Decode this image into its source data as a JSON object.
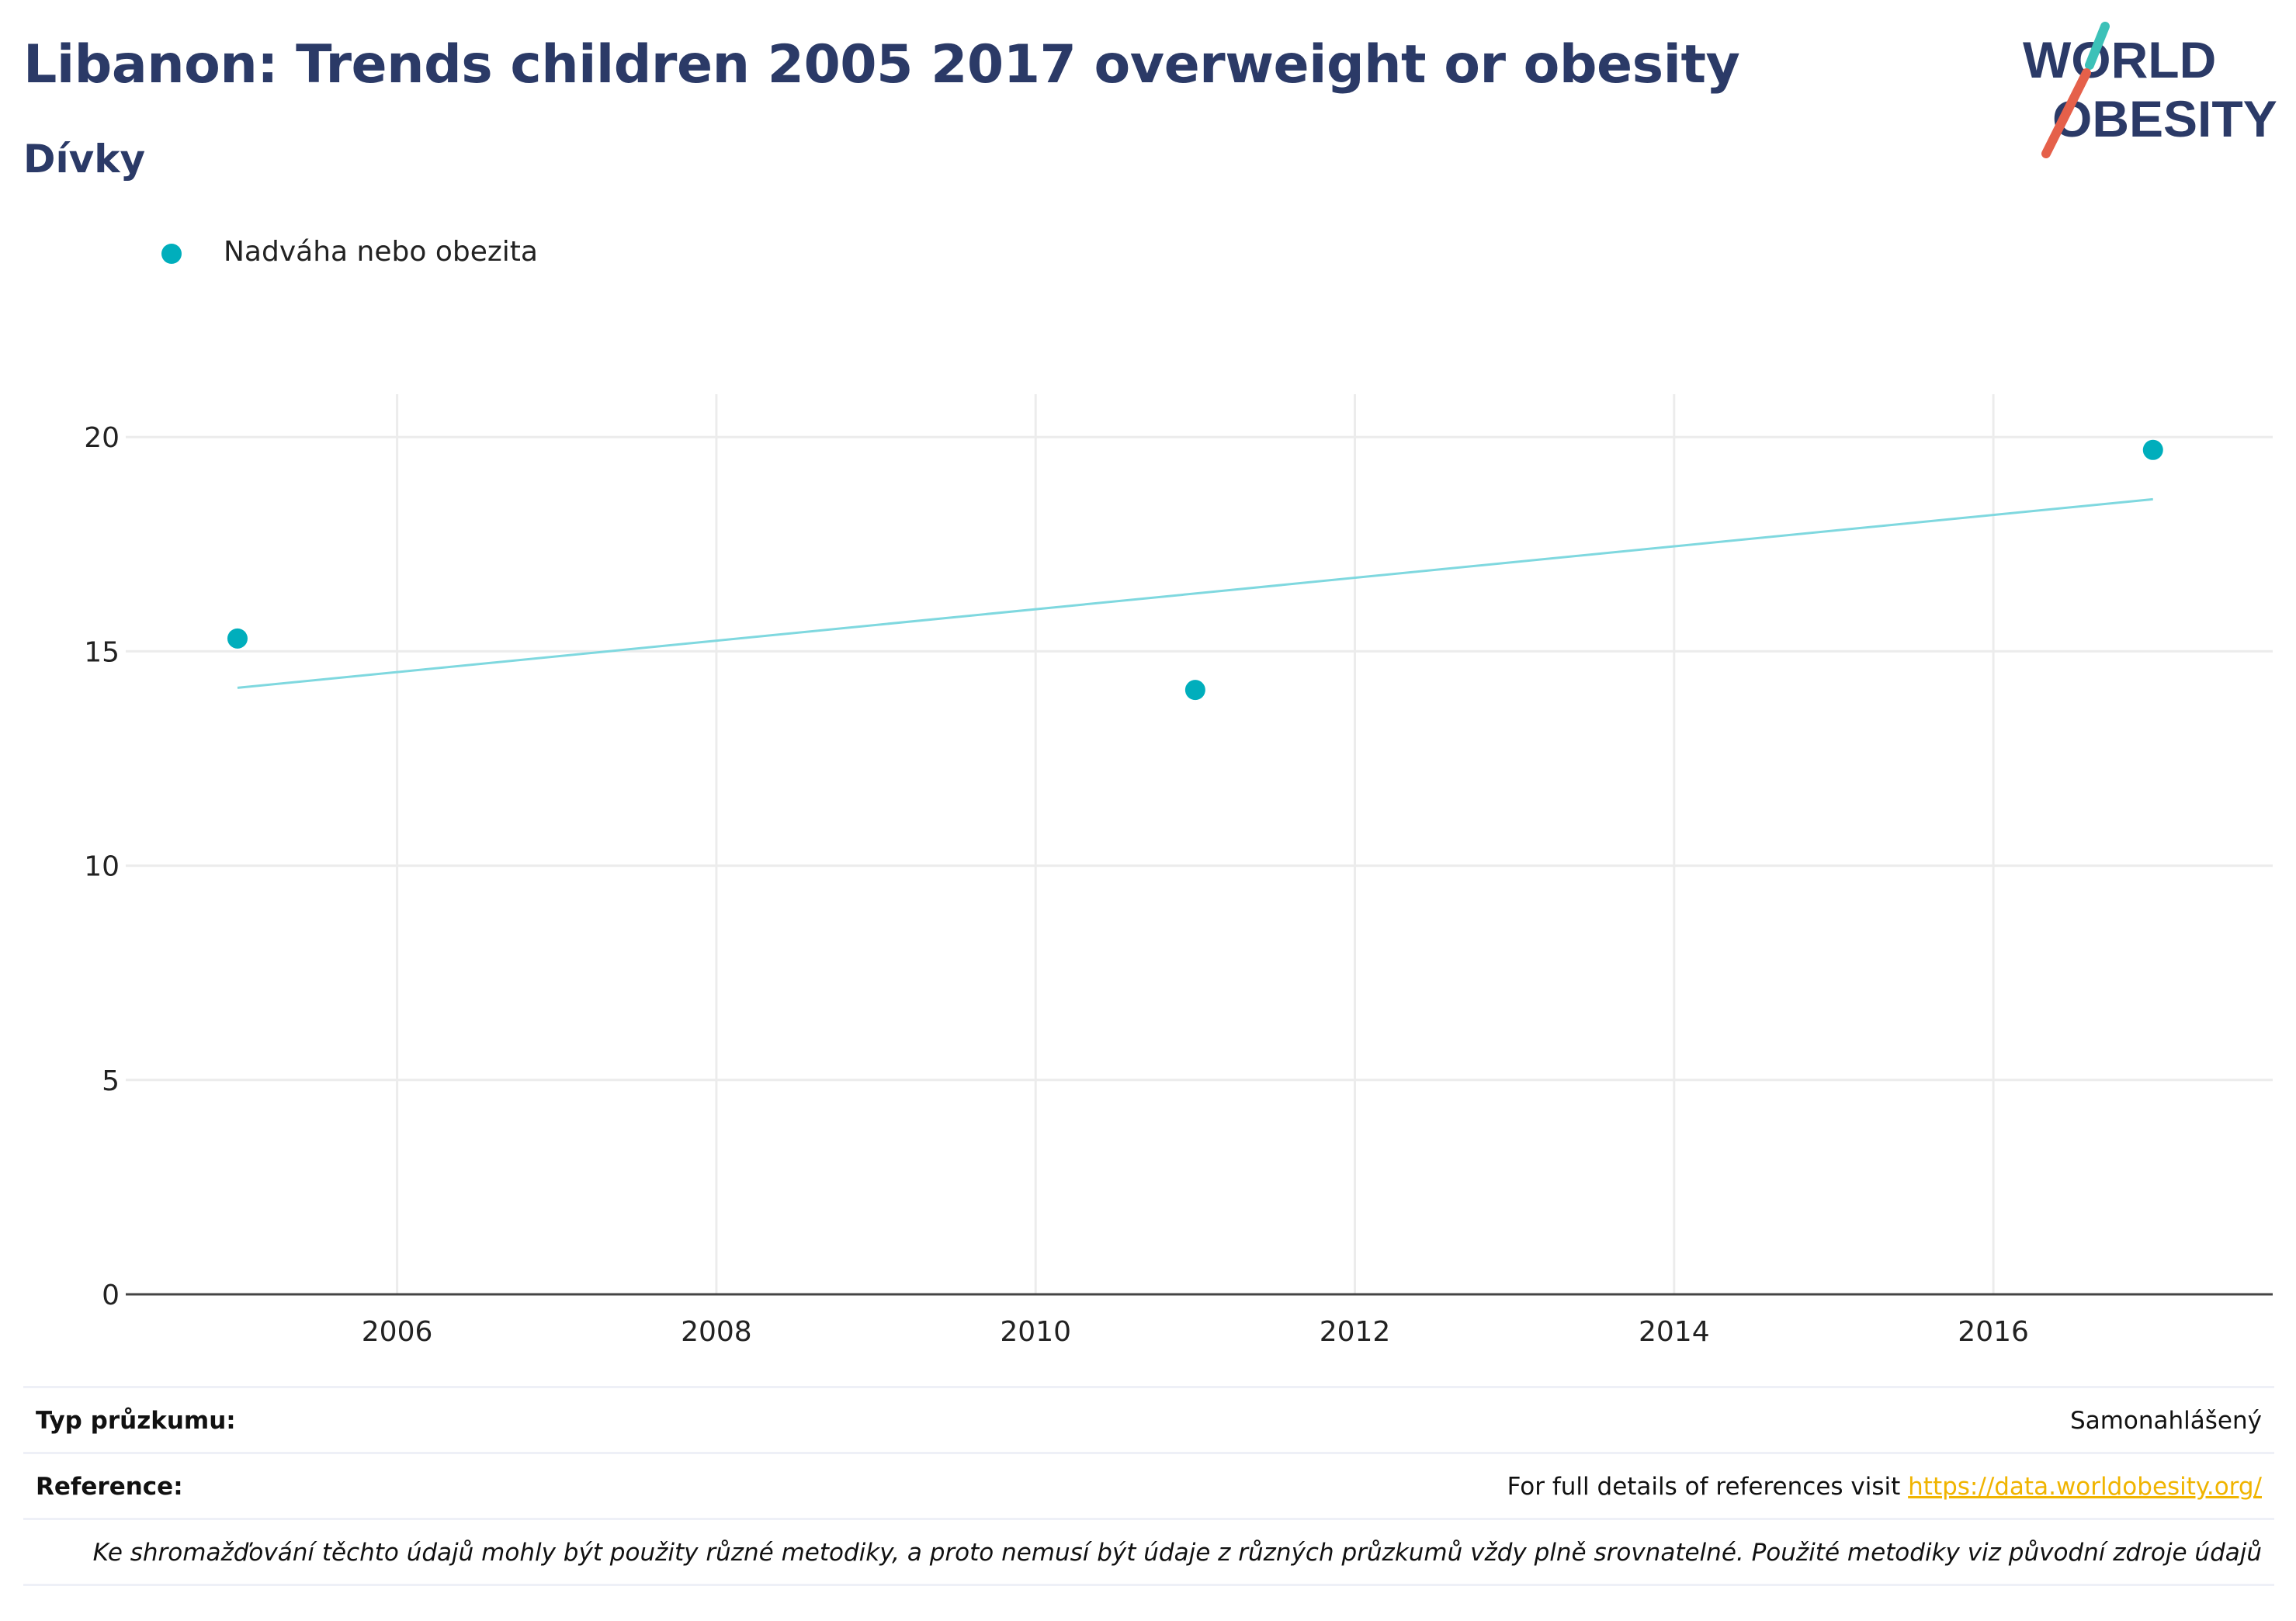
{
  "header": {
    "title": "Libanon: Trends children 2005 2017 overweight or obesity",
    "subtitle": "Dívky"
  },
  "logo": {
    "line1": "WORLD",
    "line2": "OBESITY"
  },
  "legend": {
    "label": "Nadváha nebo obezita"
  },
  "colors": {
    "accent": "#00aebc",
    "trend": "#7fd8df",
    "title": "#2b3a67",
    "link": "#f0b400",
    "grid": "#ececec",
    "logo_teal": "#3cc1b8",
    "logo_red": "#e5604a"
  },
  "chart_data": {
    "type": "scatter",
    "series": [
      {
        "name": "Nadváha nebo obezita",
        "x": [
          2005,
          2011,
          2017
        ],
        "y": [
          15.3,
          14.1,
          19.7
        ]
      }
    ],
    "trendline": {
      "x": [
        2005,
        2017
      ],
      "y": [
        14.15,
        18.55
      ]
    },
    "xlim": [
      2004.3,
      2017.75
    ],
    "ylim": [
      0,
      21
    ],
    "xticks": [
      "2006",
      "2008",
      "2010",
      "2012",
      "2014",
      "2016"
    ],
    "yticks": [
      "0",
      "5",
      "10",
      "15",
      "20"
    ],
    "grid": true,
    "legend_position": "top-left"
  },
  "footer": {
    "survey_type_label": "Typ průzkumu:",
    "survey_type_value": "Samonahlášený",
    "reference_label": "Reference:",
    "reference_text": "For full details of references visit",
    "reference_link": "https://data.worldobesity.org/",
    "note": "Ke shromažďování těchto údajů mohly být použity různé metodiky, a proto nemusí být údaje z různých průzkumů vždy plně srovnatelné. Použité metodiky viz původní zdroje údajů"
  }
}
